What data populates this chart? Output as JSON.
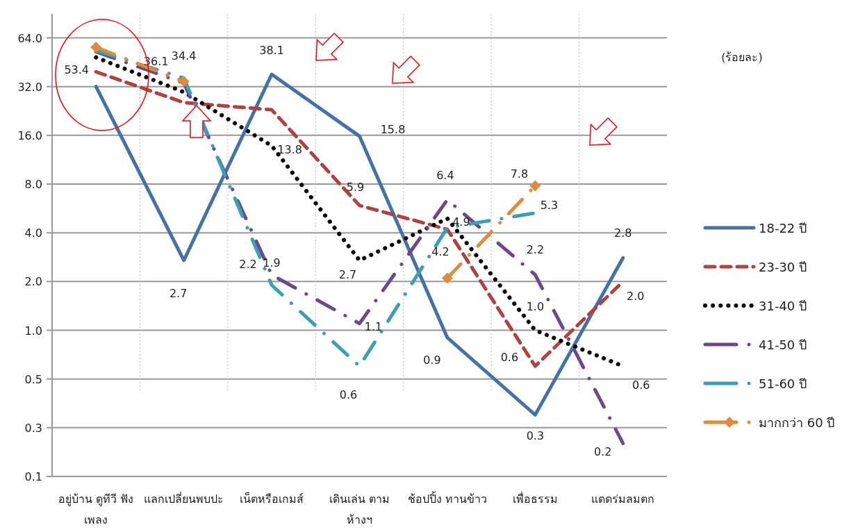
{
  "chart_data": {
    "type": "line",
    "categories": [
      "อยู่บ้าน ดูทีวี ฟังเพลง",
      "แลกเปลี่ยนพบปะ",
      "เน็ตหรือเกมส์",
      "เดินเล่น ตามห้างฯ",
      "ช้อปปิ้ง ทานข้าว",
      "เพื่อธรรม",
      "แดดร่มลมตก"
    ],
    "series": [
      {
        "name": "18-22 ปี",
        "color": "#4472a8",
        "line_style": "solid",
        "values": [
          32,
          2.7,
          38.1,
          15.8,
          0.9,
          0.3,
          2.8
        ],
        "value_labels": [
          null,
          "2.7",
          "38.1",
          "15.8",
          "0.9",
          "0.3",
          "2.8"
        ]
      },
      {
        "name": "23-30 ปี",
        "color": "#b0413e",
        "line_style": "dashed",
        "values": [
          39.5,
          25.5,
          23,
          5.9,
          4.2,
          0.6,
          2.0
        ],
        "value_labels": [
          null,
          null,
          null,
          "5.9",
          "4.2",
          "0.6",
          "2.0"
        ]
      },
      {
        "name": "31-40 ปี",
        "color": "#000000",
        "line_style": "dotted",
        "values": [
          48.5,
          29.6,
          13.8,
          2.7,
          4.9,
          1.0,
          0.6
        ],
        "value_labels": [
          null,
          null,
          "13.8",
          "2.7",
          "4.9",
          "1.0",
          "0.6"
        ]
      },
      {
        "name": "41-50 ปี",
        "color": "#6a4a8c",
        "line_style": "dashdot",
        "values": [
          52.6,
          33.6,
          2.2,
          1.1,
          6.4,
          2.2,
          0.2
        ],
        "value_labels": [
          null,
          null,
          "2.2",
          "1.1",
          "6.4",
          "2.2",
          "0.2"
        ]
      },
      {
        "name": "51-60 ปี",
        "color": "#3a9fb5",
        "line_style": "dashdot",
        "values": [
          53.4,
          36.1,
          1.9,
          0.6,
          4.3,
          5.3,
          null
        ],
        "value_labels": [
          "53.4",
          "36.1",
          "1.9",
          "0.6",
          null,
          "5.3",
          null
        ]
      },
      {
        "name": "มากกว่า 60 ปี",
        "color": "#e08a3c",
        "line_style": "dashdot",
        "marker": "diamond",
        "values": [
          56,
          34.4,
          null,
          null,
          2.1,
          7.8,
          null
        ],
        "value_labels": [
          null,
          "34.4",
          null,
          null,
          null,
          "7.8",
          null
        ]
      }
    ],
    "log": "y",
    "ylim": [
      0.125,
      90
    ],
    "yticks": [
      {
        "value": 0.125,
        "label": "0.1"
      },
      {
        "value": 0.25,
        "label": "0.3"
      },
      {
        "value": 0.5,
        "label": "0.5"
      },
      {
        "value": 1,
        "label": "1.0"
      },
      {
        "value": 2,
        "label": "2.0"
      },
      {
        "value": 4,
        "label": "4.0"
      },
      {
        "value": 8,
        "label": "8.0"
      },
      {
        "value": 16,
        "label": "16.0"
      },
      {
        "value": 32,
        "label": "32.0"
      },
      {
        "value": 64,
        "label": "64.0"
      }
    ],
    "grid": "y",
    "legend": "right",
    "annotations": [
      "(ร้อยละ)"
    ]
  }
}
